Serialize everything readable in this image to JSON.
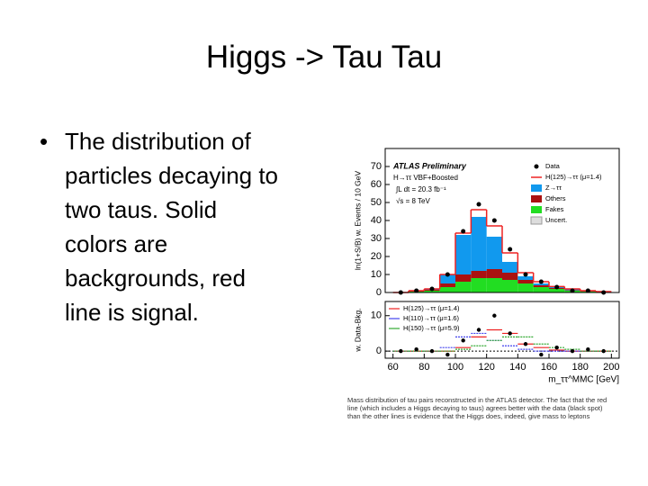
{
  "title": "Higgs -> Tau Tau",
  "bullet": {
    "lines": [
      "The distribution of",
      "particles decaying to",
      "two taus.  Solid",
      "colors are",
      "backgrounds, red",
      "line is signal."
    ]
  },
  "figure": {
    "xlabel": "m_ττ^MMC [GeV]",
    "xlim": [
      55,
      205
    ],
    "xticks": [
      60,
      80,
      100,
      120,
      140,
      160,
      180,
      200
    ],
    "bins": [
      60,
      70,
      80,
      90,
      100,
      110,
      120,
      130,
      140,
      150,
      160,
      170,
      180,
      190,
      200
    ],
    "upper": {
      "type": "stacked-histogram",
      "ylabel": "ln(1+S/B) w. Events / 10 GeV",
      "experiment": "ATLAS Preliminary",
      "channel": "H→ττ VBF+Boosted",
      "luminosity": "∫L dt = 20.3 fb⁻¹",
      "energy": "√s = 8 TeV",
      "ylim": [
        0,
        80
      ],
      "yticks": [
        0,
        10,
        20,
        30,
        40,
        50,
        60,
        70
      ],
      "series": [
        {
          "name": "Fakes",
          "color": "#22dd22",
          "values": [
            0,
            0.5,
            1,
            3,
            6,
            8,
            8,
            7,
            5,
            3,
            2,
            1,
            0.5,
            0.3
          ]
        },
        {
          "name": "Others",
          "color": "#aa1111",
          "values": [
            0,
            0.3,
            0.5,
            2,
            4,
            4,
            5,
            4,
            2,
            1,
            0.5,
            0.3,
            0.2,
            0.1
          ]
        },
        {
          "name": "Z→ττ",
          "color": "#1199ee",
          "values": [
            0,
            0.2,
            0.5,
            5,
            22,
            30,
            18,
            6,
            2,
            1,
            0.5,
            0.5,
            0.2,
            0.1
          ]
        }
      ],
      "signal": {
        "name": "H(125)→ττ (μ=1.4)",
        "color": "#ee2222",
        "values": [
          0,
          0,
          0,
          0,
          1,
          4,
          6,
          5,
          2,
          1,
          0.3,
          0.2,
          0.1,
          0
        ]
      },
      "data": {
        "name": "Data",
        "values": [
          0,
          1,
          2,
          10,
          34,
          49,
          40,
          24,
          10,
          6,
          3,
          1,
          1,
          0
        ]
      },
      "uncertainty": "Uncert."
    },
    "lower": {
      "ylabel": "w. Data-Bkg.",
      "ylim": [
        -2,
        14
      ],
      "yticks": [
        0,
        10
      ],
      "data": [
        0,
        0.5,
        0,
        -1,
        3,
        6,
        10,
        5,
        2,
        -1,
        1,
        0,
        0.5,
        0
      ],
      "series": [
        {
          "name": "H(125)→ττ (μ=1.4)",
          "color": "#ee2222",
          "values": [
            0,
            0,
            0,
            0,
            1,
            4,
            6,
            5,
            2,
            1,
            0.3,
            0,
            0,
            0
          ]
        },
        {
          "name": "H(110)→ττ (μ=1.6)",
          "color": "#4444ee",
          "values": [
            0,
            0,
            0,
            1,
            4,
            5,
            3,
            1.5,
            0.5,
            0,
            0,
            0,
            0,
            0
          ]
        },
        {
          "name": "H(150)→ττ (μ=5.9)",
          "color": "#33aa33",
          "values": [
            0,
            0,
            0,
            0,
            0.5,
            1.5,
            3,
            4,
            4,
            2,
            1,
            0.5,
            0,
            0
          ]
        }
      ]
    },
    "caption": "Mass distribution of tau pairs reconstructed in the ATLAS detector. The fact that the red line (which includes a Higgs decaying to taus) agrees better with the data (black spot) than the other lines is evidence that the Higgs does, indeed, give mass to leptons"
  }
}
